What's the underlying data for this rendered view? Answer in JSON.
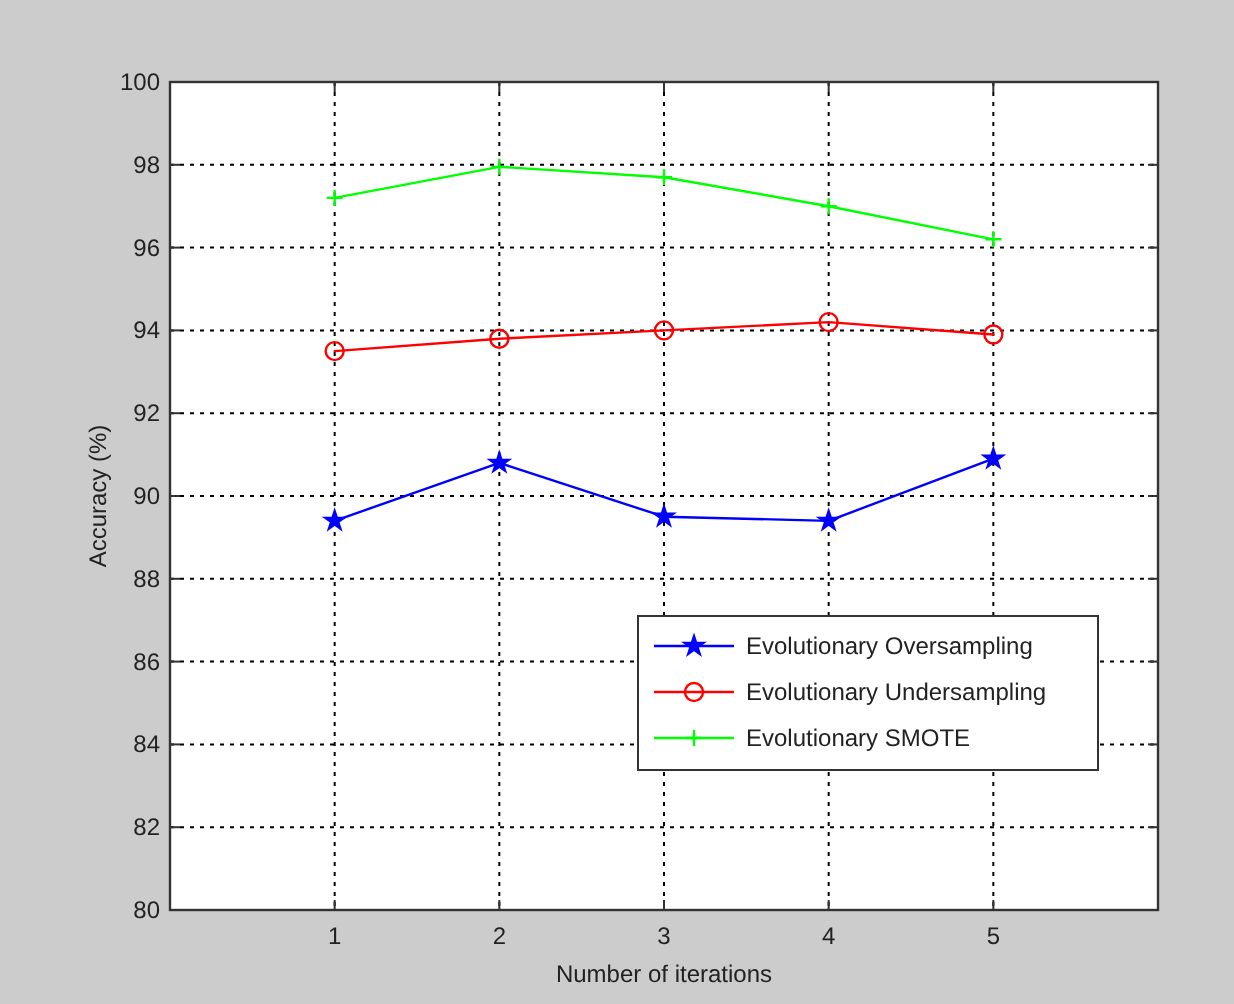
{
  "chart_data": {
    "type": "line",
    "xlabel": "Number of iterations",
    "ylabel": "Accuracy (%)",
    "x": [
      1,
      2,
      3,
      4,
      5
    ],
    "xlim": [
      0,
      6
    ],
    "xticks": [
      1,
      2,
      3,
      4,
      5
    ],
    "ylim": [
      80,
      100
    ],
    "yticks": [
      80,
      82,
      84,
      86,
      88,
      90,
      92,
      94,
      96,
      98,
      100
    ],
    "grid": true,
    "legend": "bottom right",
    "line_style": "solid",
    "series": [
      {
        "name": "Evolutionary Oversampling",
        "color": "#0000ff",
        "marker": "star",
        "values": [
          89.4,
          90.8,
          89.5,
          89.4,
          90.9
        ]
      },
      {
        "name": "Evolutionary Undersampling",
        "color": "#ff0000",
        "marker": "circle",
        "values": [
          93.5,
          93.8,
          94.0,
          94.2,
          93.9
        ]
      },
      {
        "name": "Evolutionary SMOTE",
        "color": "#00ff00",
        "marker": "cross",
        "values": [
          97.2,
          97.95,
          97.7,
          97.0,
          96.2
        ]
      }
    ]
  }
}
